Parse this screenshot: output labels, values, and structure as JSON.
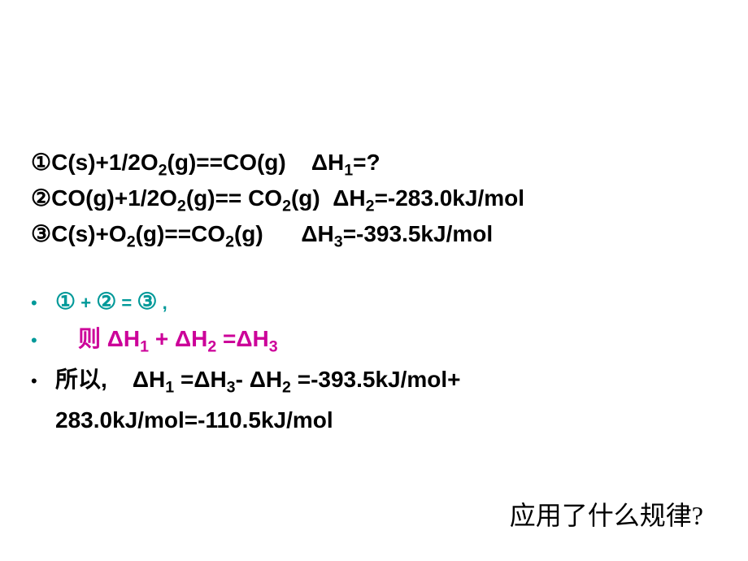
{
  "equations": {
    "eq1": {
      "num": "①",
      "text_before": "C(s)+1/2O",
      "sub1": "2",
      "text_mid": "(g)==CO(g)",
      "spacer": "    ",
      "delta": "ΔH",
      "deltasub": "1",
      "value": "=?"
    },
    "eq2": {
      "num": "②",
      "text_before": "CO(g)+1/2O",
      "sub1": "2",
      "text_mid1": "(g)== CO",
      "sub2": "2",
      "text_mid2": "(g)",
      "spacer": "  ",
      "delta": "ΔH",
      "deltasub": "2",
      "value": "=-283.0kJ/mol"
    },
    "eq3": {
      "num": "③",
      "text_before": "C(s)+O",
      "sub1": "2",
      "text_mid1": "(g)==CO",
      "sub2": "2",
      "text_mid2": "(g)",
      "spacer": "      ",
      "delta": "ΔH",
      "deltasub": "3",
      "value": "=-393.5kJ/mol"
    }
  },
  "bullets": {
    "line1": {
      "n1": "①",
      "plus": " + ",
      "n2": "②",
      "eq": " = ",
      "n3": "③",
      "comma": " ,"
    },
    "line2": {
      "prefix": "则 ",
      "d1": "ΔH",
      "s1": "1",
      "plus": " + ",
      "d2": "ΔH",
      "s2": "2",
      "eq": " =",
      "d3": "ΔH",
      "s3": "3"
    },
    "line3": {
      "prefix": "所以,    ",
      "d1": "ΔH",
      "s1": "1",
      "eq1": " =",
      "d3": "ΔH",
      "s3": "3",
      "minus": "- ",
      "d2": "ΔH",
      "s2": "2",
      "text": " =-393.5kJ/mol+"
    },
    "line4": {
      "text": "283.0kJ/mol=-110.5kJ/mol"
    }
  },
  "question": "应用了什么规律?",
  "colors": {
    "teal": "#009999",
    "magenta": "#cc0099",
    "black": "#000000",
    "bg": "#ffffff"
  }
}
